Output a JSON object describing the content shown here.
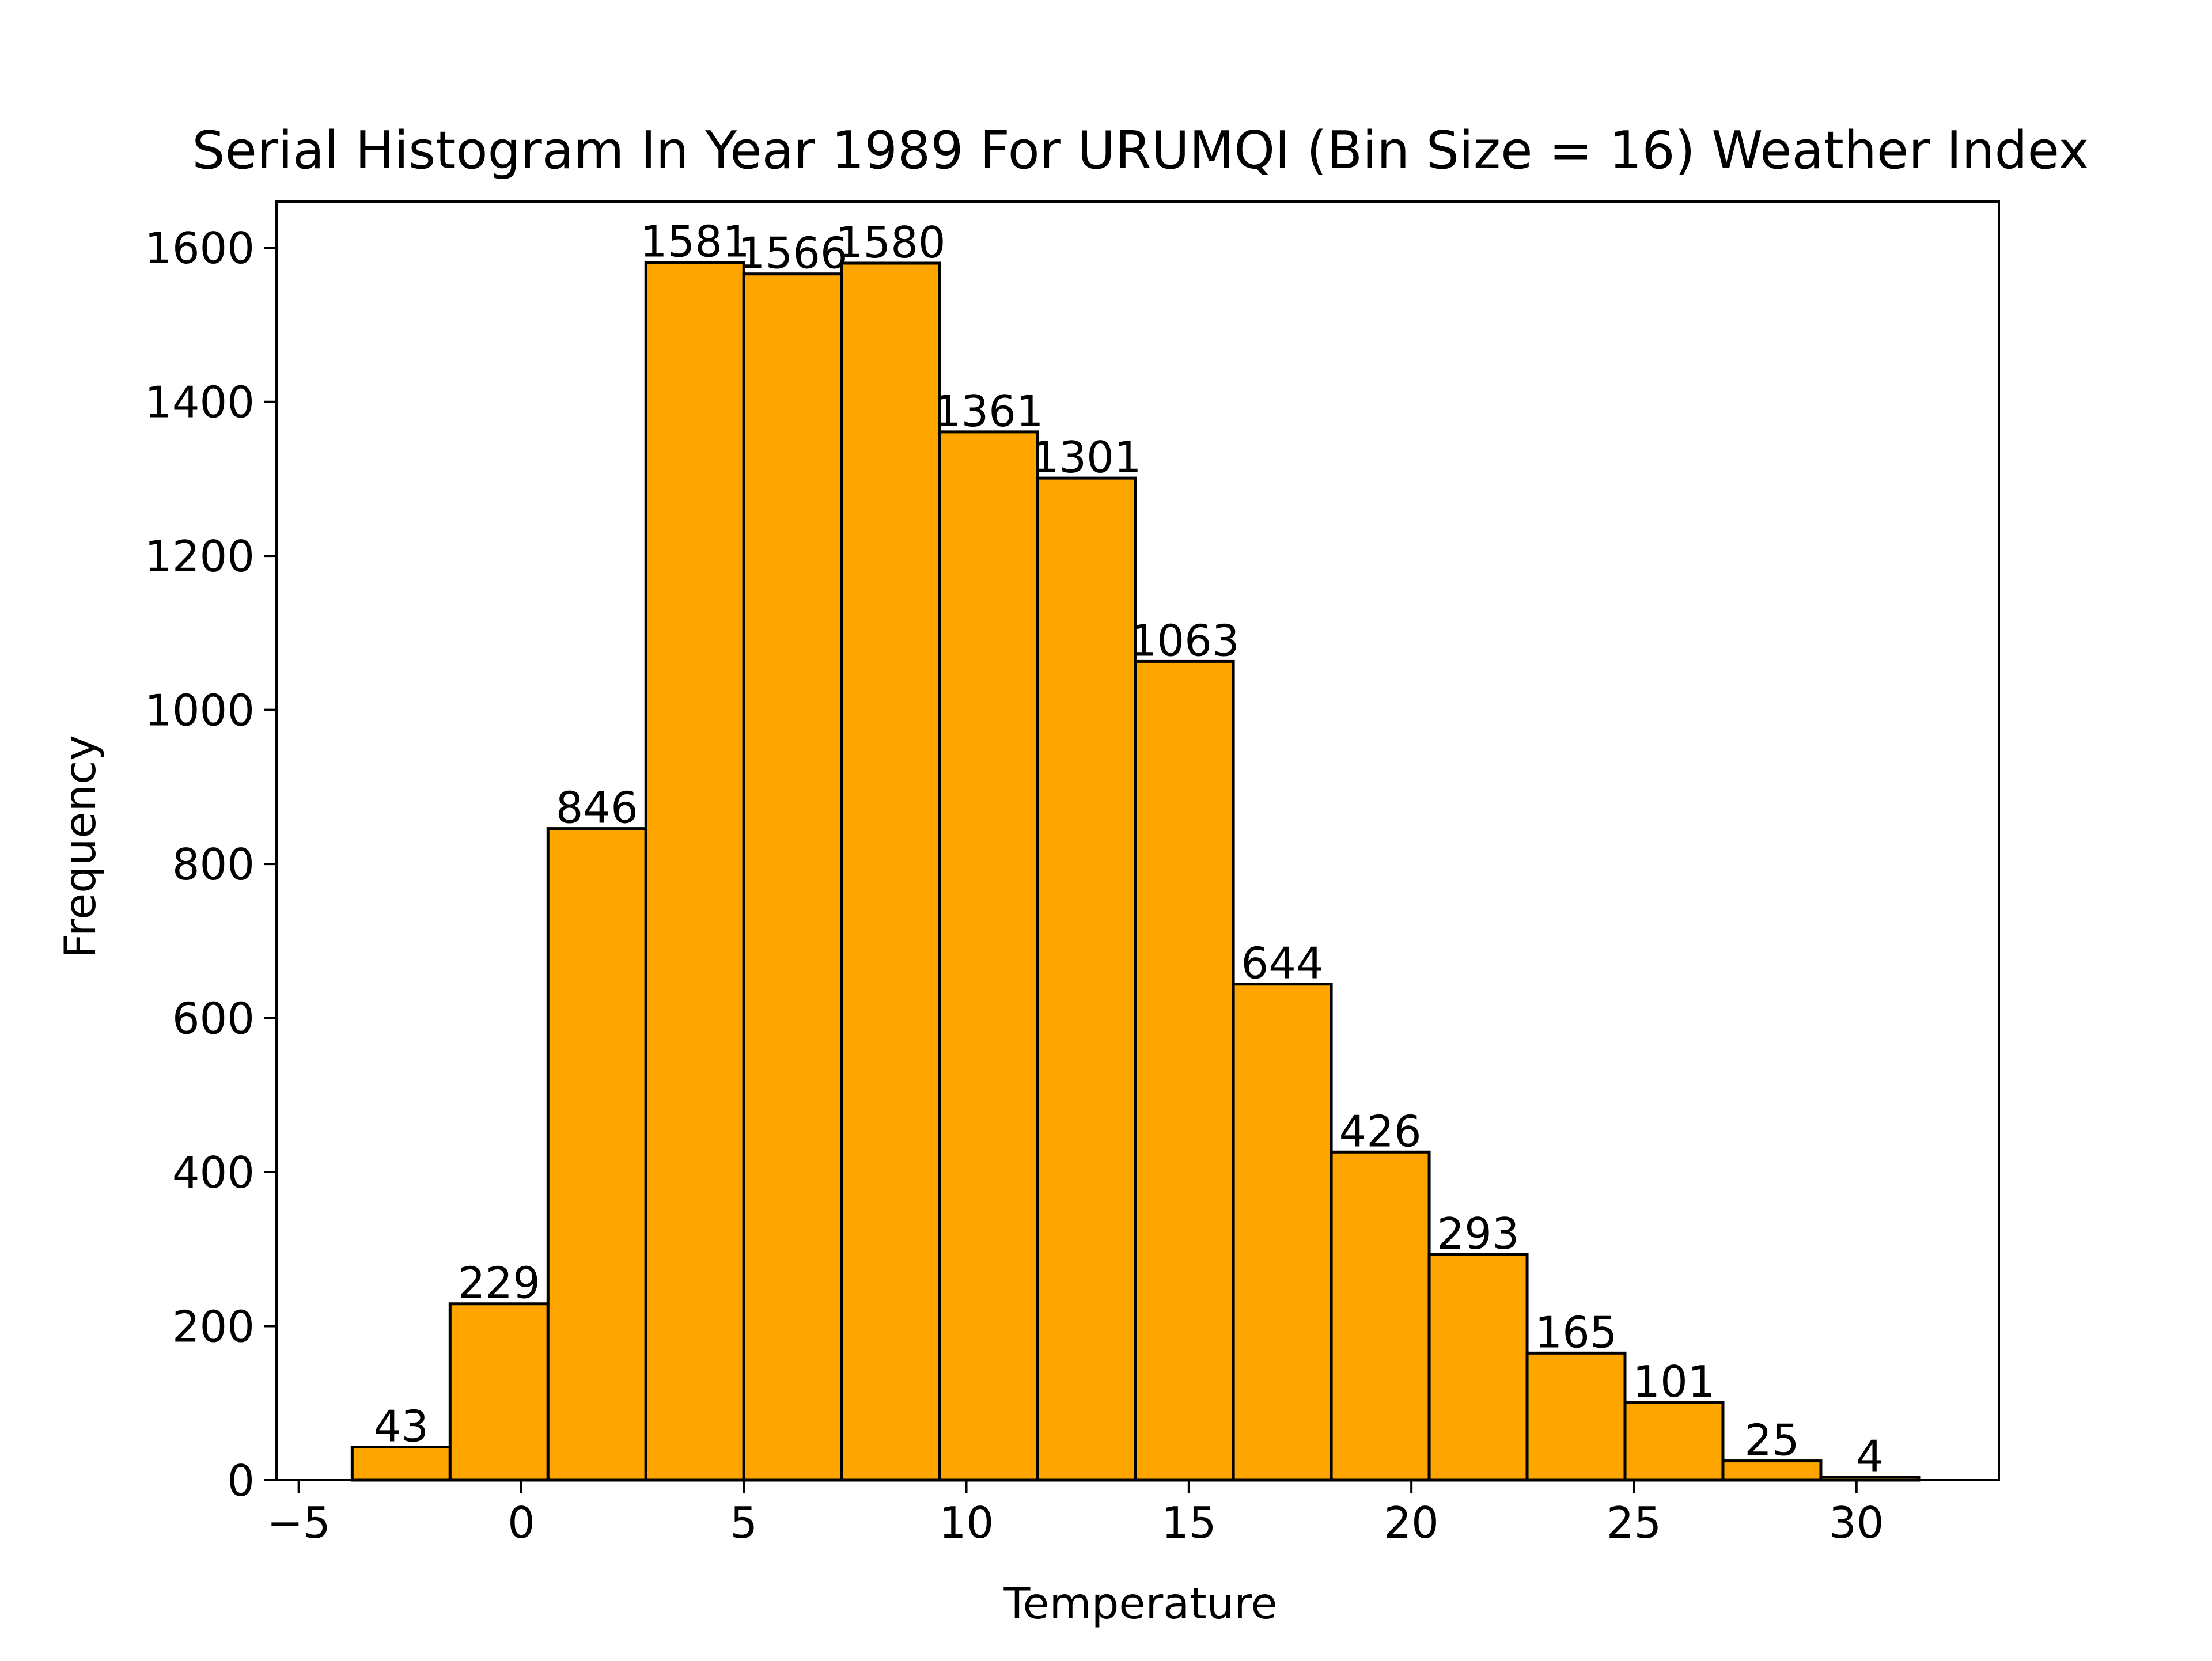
{
  "chart_data": {
    "type": "bar",
    "title": "Serial Histogram In Year 1989 For URUMQI (Bin Size = 16) Weather Index",
    "xlabel": "Temperature",
    "ylabel": "Frequency",
    "bin_edges": [
      -3.8,
      -1.6,
      0.6,
      2.8,
      5.0,
      7.2,
      9.4,
      11.6,
      13.8,
      16.0,
      18.2,
      20.4,
      22.6,
      24.8,
      27.0,
      29.2,
      31.4
    ],
    "values": [
      43,
      229,
      846,
      1581,
      1566,
      1580,
      1361,
      1301,
      1063,
      644,
      426,
      293,
      165,
      101,
      25,
      4
    ],
    "value_labels": [
      "43",
      "229",
      "846",
      "1581",
      "1566",
      "1580",
      "1361",
      "1301",
      "1063",
      "644",
      "426",
      "293",
      "165",
      "101",
      "25",
      "4"
    ],
    "xlim": [
      -5.5,
      33.2
    ],
    "ylim": [
      0,
      1660
    ],
    "x_ticks": [
      -5,
      0,
      5,
      10,
      15,
      20,
      25,
      30
    ],
    "x_tick_labels": [
      "−5",
      "0",
      "5",
      "10",
      "15",
      "20",
      "25",
      "30"
    ],
    "y_ticks": [
      0,
      200,
      400,
      600,
      800,
      1000,
      1200,
      1400,
      1600
    ],
    "y_tick_labels": [
      "0",
      "200",
      "400",
      "600",
      "800",
      "1000",
      "1200",
      "1400",
      "1600"
    ],
    "grid": false,
    "bar_color": "#FFA500",
    "edge_color": "#000000"
  }
}
